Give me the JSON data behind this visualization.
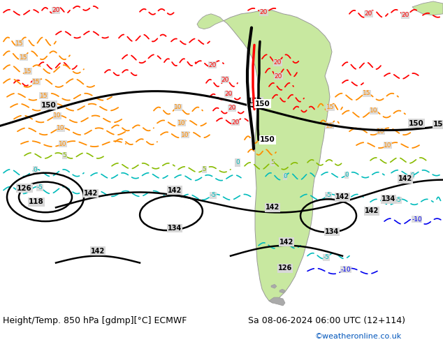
{
  "title_left": "Height/Temp. 850 hPa [gdmp][°C] ECMWF",
  "title_right": "Sa 08-06-2024 06:00 UTC (12+114)",
  "credit": "©weatheronline.co.uk",
  "background_color": "#ffffff",
  "fig_width": 6.34,
  "fig_height": 4.9,
  "dpi": 100,
  "map_bg_color": "#d8d8d8",
  "land_color": "#c8e8a0",
  "land_color2": "#b8d890",
  "ocean_color": "#d8d8d8",
  "title_fontsize": 9.0,
  "credit_fontsize": 8.0,
  "credit_color": "#0055bb",
  "black": "#000000",
  "red": "#ff0000",
  "orange": "#ff8c00",
  "yellow_green": "#88bb00",
  "cyan": "#00bbbb",
  "blue": "#0000ee",
  "magenta": "#cc00cc"
}
